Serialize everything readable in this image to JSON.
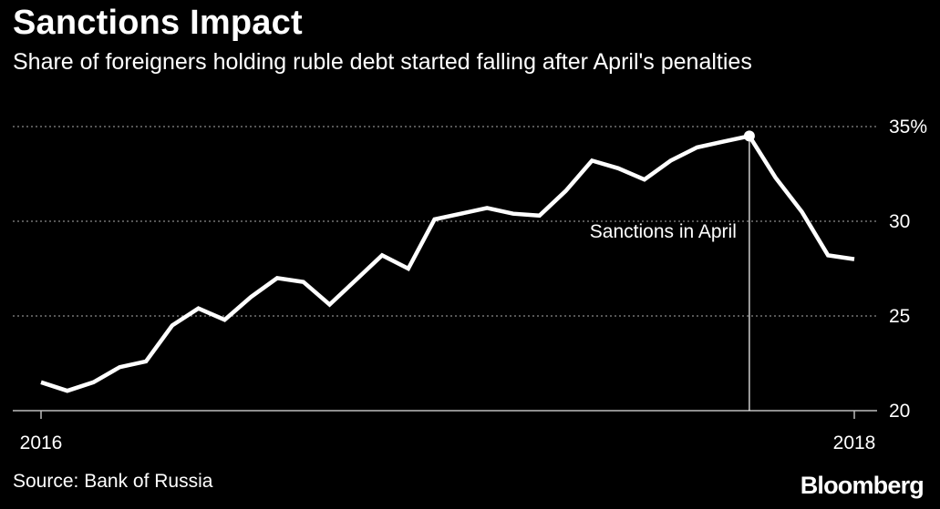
{
  "chart_data": {
    "type": "line",
    "title": "Sanctions Impact",
    "subtitle": "Share of foreigners holding ruble debt started falling after April's penalties",
    "source": "Source: Bank of Russia",
    "brand": "Bloomberg",
    "x": [
      "2016-01",
      "2016-02",
      "2016-03",
      "2016-04",
      "2016-05",
      "2016-06",
      "2016-07",
      "2016-08",
      "2016-09",
      "2016-10",
      "2016-11",
      "2016-12",
      "2017-01",
      "2017-02",
      "2017-03",
      "2017-04",
      "2017-05",
      "2017-06",
      "2017-07",
      "2017-08",
      "2017-09",
      "2017-10",
      "2017-11",
      "2017-12",
      "2018-01",
      "2018-02",
      "2018-03",
      "2018-04",
      "2018-05",
      "2018-06",
      "2018-07",
      "2018-08"
    ],
    "series": [
      {
        "values": [
          21.5,
          21.05,
          21.5,
          22.3,
          22.6,
          24.5,
          25.4,
          24.8,
          26.0,
          27.0,
          26.8,
          25.6,
          26.9,
          28.2,
          27.5,
          30.1,
          30.4,
          30.7,
          30.4,
          30.3,
          31.6,
          33.2,
          32.8,
          32.2,
          33.2,
          33.9,
          34.2,
          34.5,
          32.3,
          30.5,
          28.2,
          28.0
        ]
      }
    ],
    "x_tick_labels": [
      {
        "label": "2016",
        "x": "2016-01"
      },
      {
        "label": "2018",
        "x": "2018-08"
      }
    ],
    "y_ticks": [
      {
        "value": 20,
        "label": "20"
      },
      {
        "value": 25,
        "label": "25"
      },
      {
        "value": 30,
        "label": "30"
      },
      {
        "value": 35,
        "label": "35%"
      }
    ],
    "ylim": [
      20,
      35
    ],
    "grid": true,
    "line_color": "#ffffff",
    "grid_color": "#8a8a8a",
    "annotation": {
      "label": "Sanctions in April",
      "x": "2018-04",
      "y": 34.5
    }
  }
}
